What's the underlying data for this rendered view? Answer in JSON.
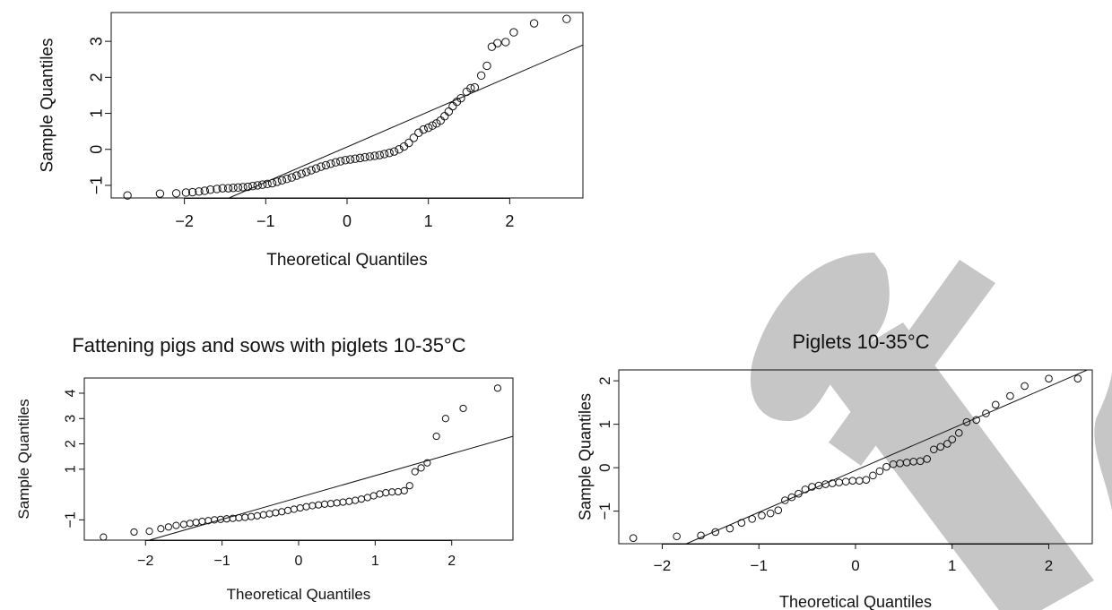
{
  "colors": {
    "ink": "#111111",
    "watermark": "#c6c6c6"
  },
  "watermark": {
    "icon": "cx-logo-watermark"
  },
  "chart_data": [
    {
      "id": "panel1",
      "type": "scatter",
      "subtype": "qq-plot",
      "title": "",
      "xlabel": "Theoretical Quantiles",
      "ylabel": "Sample Quantiles",
      "xlim": [
        -2.9,
        2.9
      ],
      "ylim": [
        -1.35,
        3.8
      ],
      "xticks": [
        -2,
        -1,
        0,
        1,
        2
      ],
      "yticks": [
        -1,
        0,
        1,
        2,
        3
      ],
      "ytick_labels": [
        "−1",
        "0",
        "1",
        "2",
        "3"
      ],
      "reference_line": {
        "points": [
          [
            -1.45,
            -1.35
          ],
          [
            2.9,
            2.9
          ]
        ]
      },
      "points": [
        [
          -2.7,
          -1.28
        ],
        [
          -2.3,
          -1.23
        ],
        [
          -2.1,
          -1.22
        ],
        [
          -1.98,
          -1.2
        ],
        [
          -1.9,
          -1.19
        ],
        [
          -1.82,
          -1.17
        ],
        [
          -1.75,
          -1.15
        ],
        [
          -1.68,
          -1.12
        ],
        [
          -1.6,
          -1.1
        ],
        [
          -1.53,
          -1.08
        ],
        [
          -1.46,
          -1.08
        ],
        [
          -1.4,
          -1.07
        ],
        [
          -1.34,
          -1.06
        ],
        [
          -1.28,
          -1.05
        ],
        [
          -1.22,
          -1.04
        ],
        [
          -1.16,
          -1.02
        ],
        [
          -1.1,
          -1.0
        ],
        [
          -1.04,
          -0.98
        ],
        [
          -0.98,
          -0.96
        ],
        [
          -0.92,
          -0.94
        ],
        [
          -0.86,
          -0.9
        ],
        [
          -0.8,
          -0.86
        ],
        [
          -0.74,
          -0.82
        ],
        [
          -0.68,
          -0.78
        ],
        [
          -0.62,
          -0.73
        ],
        [
          -0.56,
          -0.68
        ],
        [
          -0.5,
          -0.63
        ],
        [
          -0.44,
          -0.58
        ],
        [
          -0.38,
          -0.53
        ],
        [
          -0.32,
          -0.48
        ],
        [
          -0.26,
          -0.44
        ],
        [
          -0.2,
          -0.4
        ],
        [
          -0.14,
          -0.36
        ],
        [
          -0.08,
          -0.33
        ],
        [
          -0.02,
          -0.3
        ],
        [
          0.04,
          -0.28
        ],
        [
          0.1,
          -0.26
        ],
        [
          0.16,
          -0.24
        ],
        [
          0.22,
          -0.22
        ],
        [
          0.28,
          -0.2
        ],
        [
          0.34,
          -0.18
        ],
        [
          0.4,
          -0.16
        ],
        [
          0.46,
          -0.13
        ],
        [
          0.52,
          -0.1
        ],
        [
          0.58,
          -0.06
        ],
        [
          0.64,
          0.0
        ],
        [
          0.7,
          0.08
        ],
        [
          0.76,
          0.18
        ],
        [
          0.82,
          0.32
        ],
        [
          0.88,
          0.46
        ],
        [
          0.94,
          0.55
        ],
        [
          1.0,
          0.6
        ],
        [
          1.05,
          0.66
        ],
        [
          1.1,
          0.72
        ],
        [
          1.15,
          0.8
        ],
        [
          1.2,
          0.92
        ],
        [
          1.25,
          1.05
        ],
        [
          1.3,
          1.2
        ],
        [
          1.35,
          1.32
        ],
        [
          1.4,
          1.42
        ],
        [
          1.47,
          1.6
        ],
        [
          1.52,
          1.7
        ],
        [
          1.57,
          1.72
        ],
        [
          1.65,
          2.05
        ],
        [
          1.72,
          2.32
        ],
        [
          1.78,
          2.85
        ],
        [
          1.85,
          2.95
        ],
        [
          1.95,
          2.98
        ],
        [
          2.05,
          3.25
        ],
        [
          2.3,
          3.5
        ],
        [
          2.7,
          3.62
        ]
      ]
    },
    {
      "id": "panel2",
      "type": "scatter",
      "subtype": "qq-plot",
      "title": "Fattening pigs and sows with piglets 10-35°C",
      "xlabel": "Theoretical Quantiles",
      "ylabel": "Sample Quantiles",
      "xlim": [
        -2.8,
        2.8
      ],
      "ylim": [
        -1.8,
        4.6
      ],
      "xticks": [
        -2,
        -1,
        0,
        1,
        2
      ],
      "yticks": [
        -1,
        1,
        2,
        3,
        4
      ],
      "ytick_labels": [
        "−1",
        "1",
        "2",
        "3",
        "4"
      ],
      "reference_line": {
        "points": [
          [
            -1.95,
            -1.8
          ],
          [
            2.8,
            2.3
          ]
        ]
      },
      "points": [
        [
          -2.55,
          -1.68
        ],
        [
          -2.15,
          -1.48
        ],
        [
          -1.95,
          -1.45
        ],
        [
          -1.8,
          -1.35
        ],
        [
          -1.7,
          -1.28
        ],
        [
          -1.6,
          -1.22
        ],
        [
          -1.5,
          -1.18
        ],
        [
          -1.42,
          -1.14
        ],
        [
          -1.34,
          -1.1
        ],
        [
          -1.26,
          -1.06
        ],
        [
          -1.18,
          -1.03
        ],
        [
          -1.1,
          -1.0
        ],
        [
          -1.02,
          -0.98
        ],
        [
          -0.94,
          -0.96
        ],
        [
          -0.86,
          -0.94
        ],
        [
          -0.78,
          -0.92
        ],
        [
          -0.7,
          -0.9
        ],
        [
          -0.62,
          -0.87
        ],
        [
          -0.54,
          -0.84
        ],
        [
          -0.46,
          -0.8
        ],
        [
          -0.38,
          -0.76
        ],
        [
          -0.3,
          -0.72
        ],
        [
          -0.22,
          -0.68
        ],
        [
          -0.14,
          -0.63
        ],
        [
          -0.06,
          -0.58
        ],
        [
          0.02,
          -0.53
        ],
        [
          0.1,
          -0.48
        ],
        [
          0.18,
          -0.44
        ],
        [
          0.26,
          -0.41
        ],
        [
          0.34,
          -0.38
        ],
        [
          0.42,
          -0.36
        ],
        [
          0.5,
          -0.33
        ],
        [
          0.58,
          -0.3
        ],
        [
          0.66,
          -0.27
        ],
        [
          0.74,
          -0.23
        ],
        [
          0.82,
          -0.18
        ],
        [
          0.9,
          -0.12
        ],
        [
          0.98,
          -0.05
        ],
        [
          1.06,
          0.02
        ],
        [
          1.14,
          0.07
        ],
        [
          1.22,
          0.1
        ],
        [
          1.3,
          0.11
        ],
        [
          1.38,
          0.15
        ],
        [
          1.45,
          0.35
        ],
        [
          1.52,
          0.9
        ],
        [
          1.6,
          1.05
        ],
        [
          1.68,
          1.25
        ],
        [
          1.8,
          2.3
        ],
        [
          1.92,
          3.0
        ],
        [
          2.15,
          3.4
        ],
        [
          2.6,
          4.2
        ]
      ]
    },
    {
      "id": "panel3",
      "type": "scatter",
      "subtype": "qq-plot",
      "title": "Piglets 10-35°C",
      "xlabel": "Theoretical Quantiles",
      "ylabel": "Sample Quantiles",
      "xlim": [
        -2.45,
        2.45
      ],
      "ylim": [
        -1.75,
        2.25
      ],
      "xticks": [
        -2,
        -1,
        0,
        1,
        2
      ],
      "yticks": [
        -1,
        0,
        1,
        2
      ],
      "ytick_labels": [
        "−1",
        "0",
        "1",
        "2"
      ],
      "reference_line": {
        "points": [
          [
            -1.75,
            -1.75
          ],
          [
            2.45,
            2.3
          ]
        ]
      },
      "points": [
        [
          -2.3,
          -1.62
        ],
        [
          -1.85,
          -1.58
        ],
        [
          -1.6,
          -1.56
        ],
        [
          -1.45,
          -1.48
        ],
        [
          -1.3,
          -1.4
        ],
        [
          -1.18,
          -1.27
        ],
        [
          -1.07,
          -1.18
        ],
        [
          -0.97,
          -1.1
        ],
        [
          -0.88,
          -1.05
        ],
        [
          -0.8,
          -0.98
        ],
        [
          -0.73,
          -0.75
        ],
        [
          -0.66,
          -0.68
        ],
        [
          -0.59,
          -0.6
        ],
        [
          -0.52,
          -0.5
        ],
        [
          -0.45,
          -0.44
        ],
        [
          -0.38,
          -0.41
        ],
        [
          -0.31,
          -0.38
        ],
        [
          -0.24,
          -0.36
        ],
        [
          -0.17,
          -0.34
        ],
        [
          -0.1,
          -0.32
        ],
        [
          -0.03,
          -0.3
        ],
        [
          0.04,
          -0.3
        ],
        [
          0.11,
          -0.28
        ],
        [
          0.18,
          -0.18
        ],
        [
          0.25,
          -0.08
        ],
        [
          0.32,
          0.02
        ],
        [
          0.39,
          0.08
        ],
        [
          0.46,
          0.1
        ],
        [
          0.53,
          0.12
        ],
        [
          0.6,
          0.14
        ],
        [
          0.67,
          0.15
        ],
        [
          0.74,
          0.2
        ],
        [
          0.81,
          0.42
        ],
        [
          0.88,
          0.48
        ],
        [
          0.95,
          0.55
        ],
        [
          1.0,
          0.65
        ],
        [
          1.07,
          0.8
        ],
        [
          1.15,
          1.05
        ],
        [
          1.25,
          1.1
        ],
        [
          1.35,
          1.25
        ],
        [
          1.45,
          1.45
        ],
        [
          1.6,
          1.65
        ],
        [
          1.75,
          1.88
        ],
        [
          2.0,
          2.05
        ],
        [
          2.3,
          2.05
        ]
      ]
    }
  ]
}
